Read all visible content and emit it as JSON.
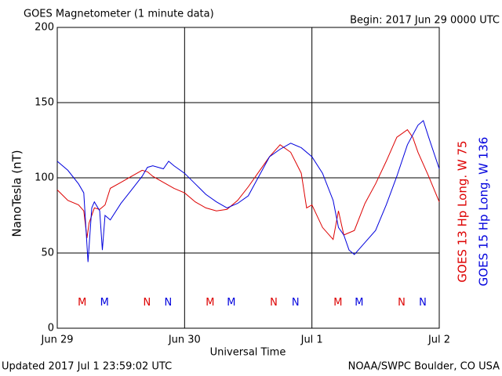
{
  "chart_data": {
    "type": "line",
    "title": "GOES Magnetometer (1 minute data)",
    "subtitle": "Begin:  2017 Jun 29 0000 UTC",
    "ylabel": "NanoTesla (nT)",
    "xlabel": "Universal Time",
    "footer_left": "Updated 2017 Jul  1 23:59:02 UTC",
    "footer_right": "NOAA/SWPC Boulder, CO USA",
    "xlim": [
      0,
      72
    ],
    "xticks": [
      {
        "value": 0,
        "label": "Jun 29"
      },
      {
        "value": 24,
        "label": "Jun 30"
      },
      {
        "value": 48,
        "label": "Jul 1"
      },
      {
        "value": 72,
        "label": "Jul 2"
      }
    ],
    "ylim": [
      0,
      200
    ],
    "yticks": [
      0,
      50,
      100,
      150,
      200
    ],
    "grid": true,
    "series": [
      {
        "name": "GOES 13 Hp  Long. W 75",
        "color": "#dd0000",
        "x": [
          0,
          2,
          4,
          5,
          5.6,
          6,
          7,
          8,
          9,
          10,
          12,
          14,
          16,
          17,
          18,
          20,
          22,
          24,
          26,
          28,
          30,
          32,
          34,
          36,
          38,
          40,
          42,
          44,
          46,
          47,
          48,
          50,
          52,
          53,
          54,
          56,
          58,
          60,
          62,
          64,
          66,
          67,
          68,
          70,
          72
        ],
        "values": [
          92,
          85,
          82,
          78,
          60,
          70,
          80,
          79,
          82,
          93,
          97,
          101,
          105,
          104,
          101,
          97,
          93,
          90,
          84,
          80,
          78,
          79,
          85,
          94,
          104,
          114,
          122,
          117,
          103,
          80,
          82,
          67,
          59,
          78,
          62,
          65,
          83,
          96,
          111,
          127,
          132,
          127,
          117,
          101,
          84
        ]
      },
      {
        "name": "GOES 15 Hp  Long. W 136",
        "color": "#0000dd",
        "x": [
          0,
          2,
          4,
          5,
          5.8,
          6.5,
          7,
          8,
          8.5,
          9,
          10,
          12,
          14,
          16,
          17,
          18,
          20,
          21,
          22,
          24,
          26,
          28,
          30,
          32,
          34,
          36,
          38,
          40,
          42,
          44,
          46,
          48,
          50,
          52,
          53,
          54,
          55,
          56,
          58,
          60,
          62,
          64,
          66,
          68,
          69,
          70,
          72
        ],
        "values": [
          111,
          105,
          96,
          90,
          44,
          80,
          84,
          78,
          52,
          75,
          72,
          83,
          92,
          101,
          107,
          108,
          106,
          111,
          108,
          103,
          96,
          89,
          84,
          80,
          83,
          88,
          101,
          114,
          119,
          123,
          120,
          114,
          103,
          85,
          67,
          62,
          52,
          49,
          57,
          65,
          82,
          101,
          122,
          135,
          138,
          127,
          106
        ]
      }
    ],
    "markers": [
      {
        "label": "M",
        "x": 4.7,
        "series": 0
      },
      {
        "label": "M",
        "x": 8.9,
        "series": 1
      },
      {
        "label": "N",
        "x": 16.9,
        "series": 0
      },
      {
        "label": "N",
        "x": 20.9,
        "series": 1
      },
      {
        "label": "M",
        "x": 28.8,
        "series": 0
      },
      {
        "label": "M",
        "x": 32.8,
        "series": 1
      },
      {
        "label": "N",
        "x": 40.8,
        "series": 0
      },
      {
        "label": "N",
        "x": 44.9,
        "series": 1
      },
      {
        "label": "M",
        "x": 52.9,
        "series": 0
      },
      {
        "label": "M",
        "x": 56.9,
        "series": 1
      },
      {
        "label": "N",
        "x": 64.9,
        "series": 0
      },
      {
        "label": "N",
        "x": 68.9,
        "series": 1
      }
    ],
    "marker_value": 17
  }
}
